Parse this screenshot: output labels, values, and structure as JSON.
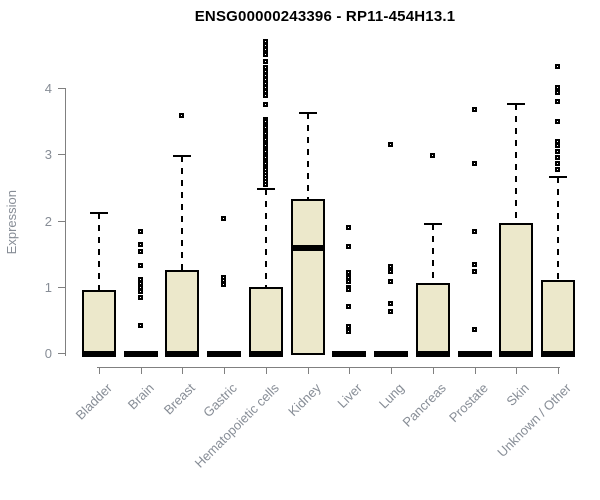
{
  "chart_data": {
    "type": "box",
    "title": "ENSG00000243396 - RP11-454H13.1",
    "ylabel": "Expression",
    "xlabel": "",
    "ylim": [
      0,
      4.75
    ],
    "yticks": [
      0,
      1,
      2,
      3,
      4
    ],
    "grid": false,
    "legend": null,
    "categories": [
      "Bladder",
      "Brain",
      "Breast",
      "Gastric",
      "Hematopoietic cells",
      "Kidney",
      "Liver",
      "Lung",
      "Pancreas",
      "Prostate",
      "Skin",
      "Unknown / Other"
    ],
    "boxes": [
      {
        "category": "Bladder",
        "q1": 0,
        "median": 0,
        "q3": 0.95,
        "whisker_low": 0,
        "whisker_high": 2.12,
        "outliers": []
      },
      {
        "category": "Brain",
        "q1": 0,
        "median": 0,
        "q3": 0,
        "whisker_low": 0,
        "whisker_high": 0,
        "outliers": [
          1.83,
          1.63,
          1.52,
          1.31,
          1.1,
          1.04,
          0.98,
          0.92,
          0.83,
          0.41
        ]
      },
      {
        "category": "Breast",
        "q1": 0,
        "median": 0,
        "q3": 1.25,
        "whisker_low": 0,
        "whisker_high": 2.97,
        "outliers": [
          3.57
        ]
      },
      {
        "category": "Gastric",
        "q1": 0,
        "median": 0,
        "q3": 0,
        "whisker_low": 0,
        "whisker_high": 0,
        "outliers": [
          2.02,
          1.13,
          1.08,
          1.03
        ]
      },
      {
        "category": "Hematopoietic cells",
        "q1": 0,
        "median": 0,
        "q3": 1.0,
        "whisker_low": 0,
        "whisker_high": 2.47,
        "outliers": [
          4.7,
          4.64,
          4.58,
          4.5,
          4.39,
          4.3,
          4.24,
          4.18,
          4.12,
          4.06,
          4.0,
          3.94,
          3.88,
          3.75,
          3.52,
          3.48,
          3.43,
          3.39,
          3.34,
          3.3,
          3.25,
          3.21,
          3.16,
          3.12,
          3.07,
          3.03,
          2.98,
          2.94,
          2.89,
          2.85,
          2.8,
          2.76,
          2.71,
          2.67,
          2.62,
          2.58,
          2.54
        ]
      },
      {
        "category": "Kidney",
        "q1": 0,
        "median": 1.6,
        "q3": 2.33,
        "whisker_low": 0,
        "whisker_high": 3.63,
        "outliers": []
      },
      {
        "category": "Liver",
        "q1": 0,
        "median": 0,
        "q3": 0,
        "whisker_low": 0,
        "whisker_high": 0,
        "outliers": [
          1.89,
          1.6,
          1.21,
          1.13,
          1.07,
          0.98,
          0.95,
          0.7,
          0.4,
          0.31
        ]
      },
      {
        "category": "Lung",
        "q1": 0,
        "median": 0,
        "q3": 0,
        "whisker_low": 0,
        "whisker_high": 0,
        "outliers": [
          3.14,
          1.3,
          1.22,
          1.07,
          0.74,
          0.62
        ]
      },
      {
        "category": "Pancreas",
        "q1": 0,
        "median": 0,
        "q3": 1.06,
        "whisker_low": 0,
        "whisker_high": 1.95,
        "outliers": [
          2.98
        ]
      },
      {
        "category": "Prostate",
        "q1": 0,
        "median": 0,
        "q3": 0,
        "whisker_low": 0,
        "whisker_high": 0,
        "outliers": [
          3.67,
          2.86,
          1.83,
          1.33,
          1.22,
          0.35
        ]
      },
      {
        "category": "Skin",
        "q1": 0,
        "median": 0,
        "q3": 1.96,
        "whisker_low": 0,
        "whisker_high": 3.76,
        "outliers": []
      },
      {
        "category": "Unknown / Other",
        "q1": 0,
        "median": 0,
        "q3": 1.1,
        "whisker_low": 0,
        "whisker_high": 2.66,
        "outliers": [
          4.32,
          4.0,
          3.92,
          3.79,
          3.49,
          3.19,
          3.12,
          3.03,
          2.94,
          2.86,
          2.76
        ]
      }
    ],
    "colors": {
      "box_fill": "#ECE8CB",
      "box_border": "#000000",
      "median": "#000000",
      "axis": "#808080",
      "tick_text": "#878D96",
      "title_text": "#000000"
    }
  }
}
